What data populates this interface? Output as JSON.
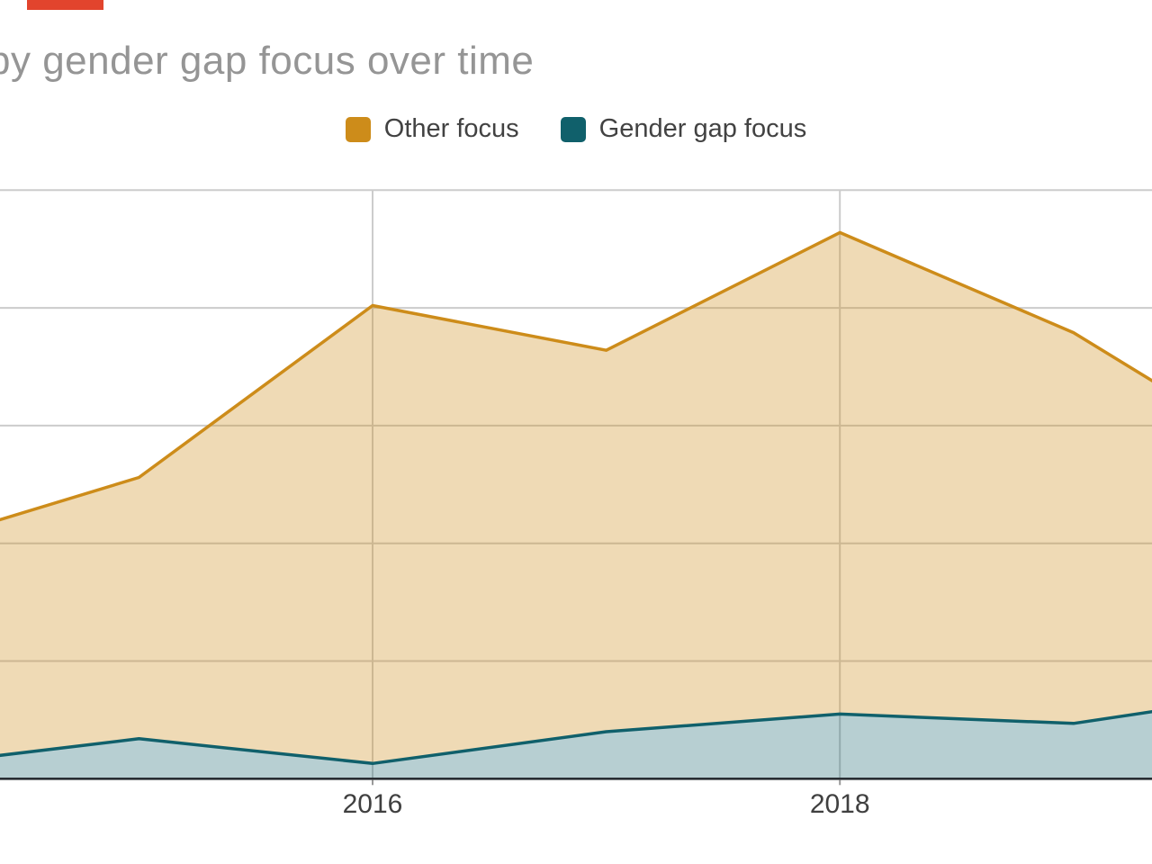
{
  "title": {
    "text": "by gender gap focus over time",
    "clipped_on_left_edge": true
  },
  "decorations": {
    "top_left_red_bar_color": "#e2442d"
  },
  "text_styles": {
    "title_color": "#959595",
    "legend_text_color": "#424242",
    "axis_label_color": "#404040"
  },
  "chart_data": {
    "type": "area",
    "stacked": true,
    "grid": true,
    "legend_position": "top-center",
    "title": "by gender gap focus over time",
    "x_tick_labels": [
      "2016",
      "2018"
    ],
    "x_tick_years": [
      2016,
      2018
    ],
    "x": [
      2014.37,
      2015,
      2016,
      2017,
      2018,
      2019,
      2019.37
    ],
    "x_note": "first and last x are where the curves meet the cropped image edges; interior points are yearly vertices",
    "y_axis_labels_visible": false,
    "y_unit_note": "y-axis labels are cropped off the left edge; values estimated in gridline intervals (baseline = 0, top gridline = 5)",
    "ylim": [
      0,
      5.16
    ],
    "series": [
      {
        "name": "Other focus",
        "color": "#CD8C1A",
        "fill": "rgba(205,140,26,0.32)",
        "values": [
          1.99,
          2.22,
          3.89,
          3.24,
          4.09,
          3.32,
          2.76
        ],
        "stack_top_totals": [
          2.18,
          2.56,
          4.02,
          3.64,
          4.64,
          3.79,
          3.34
        ]
      },
      {
        "name": "Gender gap focus",
        "color": "#10606B",
        "fill": "rgba(16,96,107,0.30)",
        "values": [
          0.19,
          0.34,
          0.13,
          0.4,
          0.55,
          0.47,
          0.58
        ]
      }
    ],
    "gridline_color": "#cccccc",
    "baseline_color": "#282d33",
    "tick_color": "#999999",
    "horizontal_gridlines": 6
  }
}
